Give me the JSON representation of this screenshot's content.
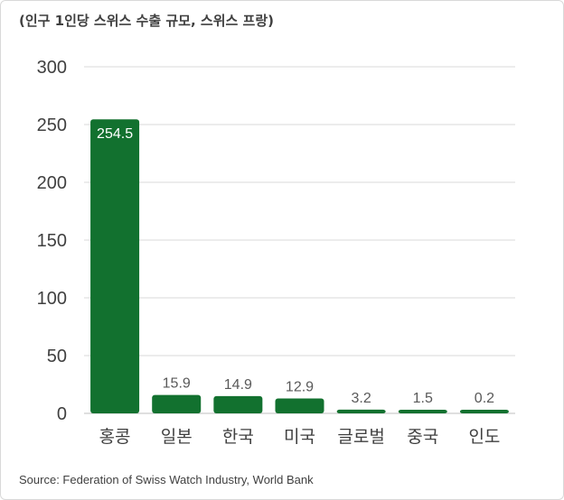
{
  "chart_data": {
    "type": "bar",
    "title": "(인구 1인당 스위스 수출 규모, 스위스 프랑)",
    "categories": [
      "홍콩",
      "일본",
      "한국",
      "미국",
      "글로벌",
      "중국",
      "인도"
    ],
    "values": [
      254.5,
      15.9,
      14.9,
      12.9,
      3.2,
      1.5,
      0.2
    ],
    "value_labels": [
      "254.5",
      "15.9",
      "14.9",
      "12.9",
      "3.2",
      "1.5",
      "0.2"
    ],
    "yticks": [
      "0",
      "50",
      "100",
      "150",
      "200",
      "250",
      "300"
    ],
    "ylim": [
      0,
      300
    ],
    "grid": true,
    "bar_color": "#12712f",
    "source": "Source: Federation of Swiss Watch Industry, World Bank"
  }
}
